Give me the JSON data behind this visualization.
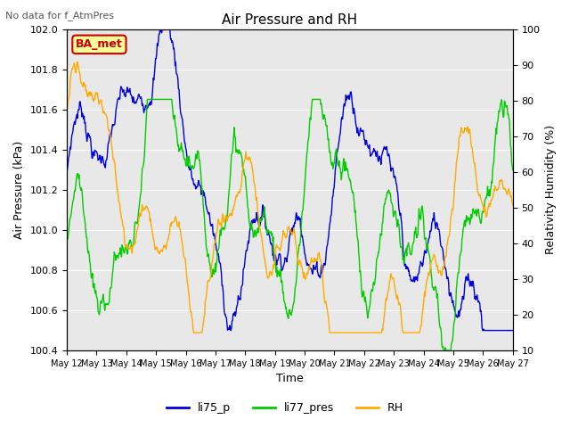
{
  "title": "Air Pressure and RH",
  "subtitle": "No data for f_AtmPres",
  "xlabel": "Time",
  "ylabel_left": "Air Pressure (kPa)",
  "ylabel_right": "Relativity Humidity (%)",
  "ylim_left": [
    100.4,
    102.0
  ],
  "ylim_right": [
    10,
    100
  ],
  "yticks_left": [
    100.4,
    100.6,
    100.8,
    101.0,
    101.2,
    101.4,
    101.6,
    101.8,
    102.0
  ],
  "yticks_right": [
    10,
    20,
    30,
    40,
    50,
    60,
    70,
    80,
    90,
    100
  ],
  "xtick_labels": [
    "May 12",
    "May 13",
    "May 14",
    "May 15",
    "May 16",
    "May 17",
    "May 18",
    "May 19",
    "May 20",
    "May 21",
    "May 22",
    "May 23",
    "May 24",
    "May 25",
    "May 26",
    "May 27"
  ],
  "color_li75": "#0000dd",
  "color_li77": "#00cc00",
  "color_rh": "#ffaa00",
  "legend_labels": [
    "li75_p",
    "li77_pres",
    "RH"
  ],
  "annotation_text": "BA_met",
  "annotation_color": "#cc0000",
  "annotation_bg": "#ffff99",
  "plot_bg": "#e8e8e8",
  "grid_color": "#ffffff",
  "n_points": 800,
  "seed": 7
}
